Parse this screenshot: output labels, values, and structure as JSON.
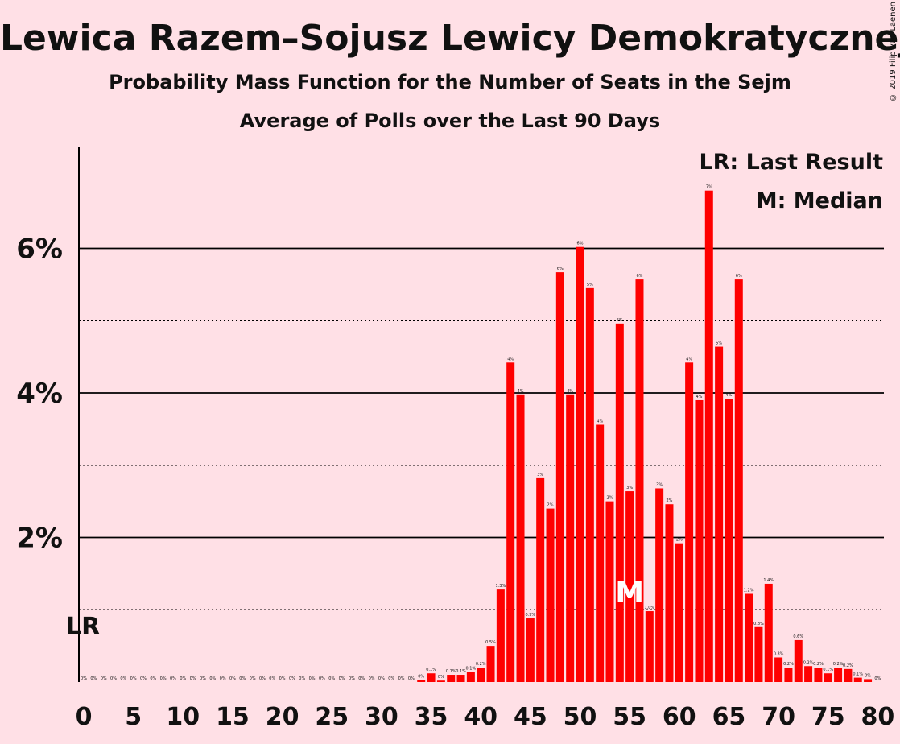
{
  "title": "Lewica Razem–Sojusz Lewicy Demokratycznej–Wiosna",
  "subtitle": "Probability Mass Function for the Number of Seats in the Sejm",
  "subtitle2": "Average of Polls over the Last 90 Days",
  "copyright": "© 2019 Filip van Laenen",
  "chart_data": {
    "type": "bar",
    "x": [
      0,
      1,
      2,
      3,
      4,
      5,
      6,
      7,
      8,
      9,
      10,
      11,
      12,
      13,
      14,
      15,
      16,
      17,
      18,
      19,
      20,
      21,
      22,
      23,
      24,
      25,
      26,
      27,
      28,
      29,
      30,
      31,
      32,
      33,
      34,
      35,
      36,
      37,
      38,
      39,
      40,
      41,
      42,
      43,
      44,
      45,
      46,
      47,
      48,
      49,
      50,
      51,
      52,
      53,
      54,
      55,
      56,
      57,
      58,
      59,
      60,
      61,
      62,
      63,
      64,
      65,
      66,
      67,
      68,
      69,
      70,
      71,
      72,
      73,
      74,
      75,
      76,
      77,
      78,
      79,
      80
    ],
    "values": [
      0,
      0,
      0,
      0,
      0,
      0,
      0,
      0,
      0,
      0,
      0,
      0,
      0,
      0,
      0,
      0,
      0,
      0,
      0,
      0,
      0,
      0,
      0,
      0,
      0,
      0,
      0,
      0,
      0,
      0,
      0,
      0,
      0,
      0,
      0.03,
      0.12,
      0.02,
      0.1,
      0.1,
      0.14,
      0.2,
      0.5,
      1.28,
      4.42,
      3.98,
      0.88,
      2.82,
      2.4,
      5.67,
      3.98,
      6.02,
      5.45,
      3.56,
      2.5,
      4.96,
      2.64,
      5.57,
      0.98,
      2.68,
      2.46,
      1.92,
      4.42,
      3.9,
      6.8,
      4.64,
      3.92,
      5.57,
      1.22,
      0.76,
      1.36,
      0.34,
      0.2,
      0.58,
      0.22,
      0.2,
      0.12,
      0.2,
      0.18,
      0.06,
      0.04,
      0
    ],
    "labels": [
      "0%",
      "0%",
      "0%",
      "0%",
      "0%",
      "0%",
      "0%",
      "0%",
      "0%",
      "0%",
      "0%",
      "0%",
      "0%",
      "0%",
      "0%",
      "0%",
      "0%",
      "0%",
      "0%",
      "0%",
      "0%",
      "0%",
      "0%",
      "0%",
      "0%",
      "0%",
      "0%",
      "0%",
      "0%",
      "0%",
      "0%",
      "0%",
      "0%",
      "0%",
      "0%",
      "0.1%",
      "0%",
      "0.1%",
      "0.1%",
      "0.1%",
      "0.2%",
      "0.5%",
      "1.3%",
      "4%",
      "4%",
      "0.9%",
      "3%",
      "2%",
      "6%",
      "4%",
      "6%",
      "5%",
      "4%",
      "2%",
      "5%",
      "3%",
      "6%",
      "1.0%",
      "3%",
      "2%",
      "2%",
      "4%",
      "4%",
      "7%",
      "5%",
      "4%",
      "6%",
      "1.2%",
      "0.8%",
      "1.4%",
      "0.3%",
      "0.2%",
      "0.6%",
      "0.2%",
      "0.2%",
      "0.1%",
      "0.2%",
      "0.2%",
      "0.1%",
      "0%",
      "0%"
    ],
    "ylim": [
      0,
      7.4
    ],
    "yticks": [
      2,
      4,
      6
    ],
    "ytick_labels": [
      "2%",
      "4%",
      "6%"
    ],
    "dotted_lines": [
      1,
      3,
      5
    ],
    "xticks": [
      0,
      5,
      10,
      15,
      20,
      25,
      30,
      35,
      40,
      45,
      50,
      55,
      60,
      65,
      70,
      75,
      80
    ],
    "last_result_x": 0,
    "last_result_label": "LR",
    "median_x": 55,
    "median_label": "M",
    "legend": [
      "LR: Last Result",
      "M: Median"
    ],
    "bar_color": "#FF0000",
    "background": "#FFE0E6"
  }
}
